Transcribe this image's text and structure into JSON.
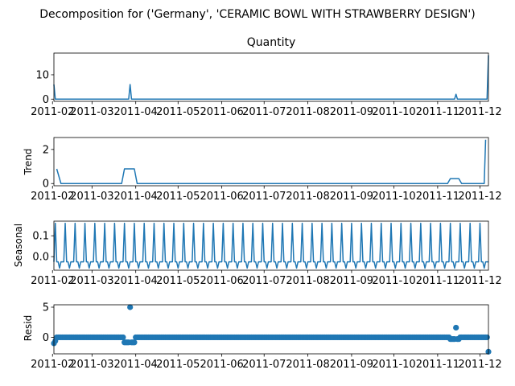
{
  "chart_data": {
    "type": "line",
    "suptitle": "Decomposition for ('Germany', 'CERAMIC BOWL WITH STRAWBERRY DESIGN')",
    "x_start": "2011-02-02",
    "x_end": "2011-12-07",
    "x_tick_labels": [
      "2011-02",
      "2011-03",
      "2011-04",
      "2011-05",
      "2011-06",
      "2011-07",
      "2011-08",
      "2011-09",
      "2011-10",
      "2011-11",
      "2011-12"
    ],
    "color": "#1f77b4",
    "grid": false,
    "panels": [
      {
        "name": "observed",
        "title": "Quantity",
        "ylabel": "",
        "ylim": [
          -0.9,
          18.9
        ],
        "yticks": [
          0,
          10
        ],
        "ytick_labels": [
          "0",
          "10"
        ],
        "style": "line",
        "points": [
          [
            "2011-02-02",
            6
          ],
          [
            "2011-02-03",
            0
          ],
          [
            "2011-03-27",
            0
          ],
          [
            "2011-03-28",
            6
          ],
          [
            "2011-03-29",
            0
          ],
          [
            "2011-11-13",
            0
          ],
          [
            "2011-11-14",
            2
          ],
          [
            "2011-11-15",
            0
          ],
          [
            "2011-12-06",
            0
          ],
          [
            "2011-12-07",
            18
          ]
        ]
      },
      {
        "name": "trend",
        "title": "",
        "ylabel": "Trend",
        "ylim": [
          -0.13,
          2.7
        ],
        "yticks": [
          0,
          2
        ],
        "ytick_labels": [
          "0",
          "2"
        ],
        "style": "line",
        "points": [
          [
            "2011-02-04",
            0.86
          ],
          [
            "2011-02-07",
            0
          ],
          [
            "2011-03-22",
            0
          ],
          [
            "2011-03-24",
            0.86
          ],
          [
            "2011-03-31",
            0.86
          ],
          [
            "2011-04-02",
            0
          ],
          [
            "2011-11-08",
            0
          ],
          [
            "2011-11-10",
            0.29
          ],
          [
            "2011-11-16",
            0.29
          ],
          [
            "2011-11-18",
            0
          ],
          [
            "2011-12-04",
            0
          ],
          [
            "2011-12-05",
            2.57
          ]
        ]
      },
      {
        "name": "seasonal",
        "title": "",
        "ylabel": "Seasonal",
        "ylim": [
          -0.065,
          0.17
        ],
        "yticks": [
          0.0,
          0.1
        ],
        "ytick_labels": [
          "0.0",
          "0.1"
        ],
        "style": "seasonal",
        "period_days": 7,
        "pattern_start": "2011-02-02",
        "pattern": [
          -0.025,
          0.16,
          -0.025,
          -0.025,
          -0.055,
          -0.025,
          -0.025
        ]
      },
      {
        "name": "resid",
        "title": "",
        "ylabel": "Resid",
        "ylim": [
          -2.75,
          5.4
        ],
        "yticks": [
          0,
          5
        ],
        "ytick_labels": [
          "0",
          "5"
        ],
        "style": "scatter",
        "baseline": 0.0,
        "start": "2011-02-02",
        "end": "2011-12-07",
        "outliers": [
          [
            "2011-02-02",
            -1.0
          ],
          [
            "2011-02-03",
            -0.6
          ],
          [
            "2011-03-24",
            -0.85
          ],
          [
            "2011-03-25",
            -0.85
          ],
          [
            "2011-03-26",
            -0.85
          ],
          [
            "2011-03-27",
            -0.85
          ],
          [
            "2011-03-28",
            5.0
          ],
          [
            "2011-03-29",
            -0.85
          ],
          [
            "2011-03-30",
            -0.85
          ],
          [
            "2011-03-31",
            -0.85
          ],
          [
            "2011-11-10",
            -0.3
          ],
          [
            "2011-11-11",
            -0.3
          ],
          [
            "2011-11-12",
            -0.3
          ],
          [
            "2011-11-13",
            -0.3
          ],
          [
            "2011-11-14",
            1.6
          ],
          [
            "2011-11-15",
            -0.3
          ],
          [
            "2011-11-16",
            -0.3
          ],
          [
            "2011-12-07",
            -2.4
          ]
        ]
      }
    ]
  }
}
